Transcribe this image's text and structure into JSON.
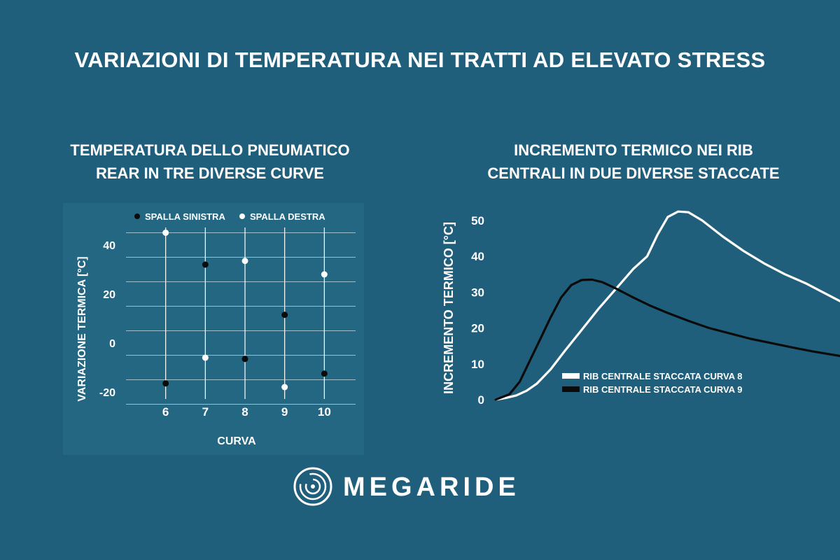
{
  "header": {
    "title": "VARIAZIONI DI TEMPERATURA NEI TRATTI AD ELEVATO STRESS"
  },
  "left_chart": {
    "title_lines": [
      "TEMPERATURA DELLO PNEUMATICO",
      "REAR IN TRE DIVERSE CURVE"
    ]
  },
  "right_chart": {
    "title_lines": [
      "INCREMENTO TERMICO NEI RIB",
      "CENTRALI IN DUE DIVERSE STACCATE"
    ]
  },
  "brand": {
    "name": "MEGARIDE",
    "icon": "megaride-logo-icon"
  },
  "colors": {
    "background": "#205f7c",
    "left_plot_bg": "#246783",
    "black_series": "#0b0b0b",
    "white_series": "#ffffff"
  },
  "chart_data": [
    {
      "type": "scatter",
      "title": "TEMPERATURA DELLO PNEUMATICO REAR IN TRE DIVERSE CURVE",
      "xlabel": "CURVA",
      "ylabel": "VARIAZIONE TERMICA [°C]",
      "x_ticks": [
        6,
        7,
        8,
        9,
        10
      ],
      "y_ticks": [
        40,
        20,
        0,
        -20
      ],
      "xlim": [
        5,
        11
      ],
      "ylim": [
        -30,
        50
      ],
      "grid": true,
      "legend_position": "top",
      "series": [
        {
          "name": "SPALLA SINISTRA",
          "color": "#0b0b0b",
          "points": [
            [
              6,
              -16.5
            ],
            [
              7,
              32
            ],
            [
              8,
              -6.5
            ],
            [
              9,
              11.5
            ],
            [
              10,
              -12.5
            ]
          ]
        },
        {
          "name": "SPALLA DESTRA",
          "color": "#ffffff",
          "points": [
            [
              6,
              45
            ],
            [
              7,
              -6
            ],
            [
              8,
              33.5
            ],
            [
              9,
              -18
            ],
            [
              10,
              28
            ]
          ]
        }
      ]
    },
    {
      "type": "line",
      "title": "INCREMENTO TERMICO NEI RIB CENTRALI IN DUE DIVERSE STACCATE",
      "xlabel": "",
      "ylabel": "INCREMENTO TERMICO [°C]",
      "y_ticks": [
        50,
        40,
        30,
        20,
        10,
        0
      ],
      "ylim": [
        0,
        55
      ],
      "xlim": [
        0,
        100
      ],
      "grid": false,
      "legend_position": "bottom-right",
      "series": [
        {
          "name": "RIB CENTRALE STACCATA CURVA 8",
          "color": "#ffffff",
          "points": [
            [
              0,
              0
            ],
            [
              3,
              0.5
            ],
            [
              6,
              1.2
            ],
            [
              9,
              2.5
            ],
            [
              12,
              4.5
            ],
            [
              16,
              8.5
            ],
            [
              20,
              13.5
            ],
            [
              25,
              19.5
            ],
            [
              30,
              25.5
            ],
            [
              35,
              31
            ],
            [
              40,
              36.5
            ],
            [
              44,
              40
            ],
            [
              47,
              46
            ],
            [
              50,
              51
            ],
            [
              53,
              52.5
            ],
            [
              56,
              52.3
            ],
            [
              60,
              50
            ],
            [
              66,
              45.5
            ],
            [
              72,
              41.5
            ],
            [
              78,
              38
            ],
            [
              84,
              35
            ],
            [
              90,
              32.5
            ],
            [
              95,
              30
            ],
            [
              100,
              27.5
            ]
          ]
        },
        {
          "name": "RIB CENTRALE STACCATA CURVA 9",
          "color": "#0b0b0b",
          "points": [
            [
              0,
              0
            ],
            [
              4,
              1.5
            ],
            [
              7,
              5
            ],
            [
              10,
              11
            ],
            [
              13,
              17
            ],
            [
              16,
              23
            ],
            [
              19,
              28.5
            ],
            [
              22,
              32
            ],
            [
              25,
              33.4
            ],
            [
              28,
              33.5
            ],
            [
              31,
              32.8
            ],
            [
              35,
              31
            ],
            [
              40,
              28.5
            ],
            [
              45,
              26.2
            ],
            [
              50,
              24.2
            ],
            [
              56,
              22
            ],
            [
              62,
              20
            ],
            [
              68,
              18.5
            ],
            [
              74,
              17
            ],
            [
              80,
              15.8
            ],
            [
              86,
              14.6
            ],
            [
              92,
              13.5
            ],
            [
              100,
              12.2
            ]
          ]
        }
      ]
    }
  ]
}
